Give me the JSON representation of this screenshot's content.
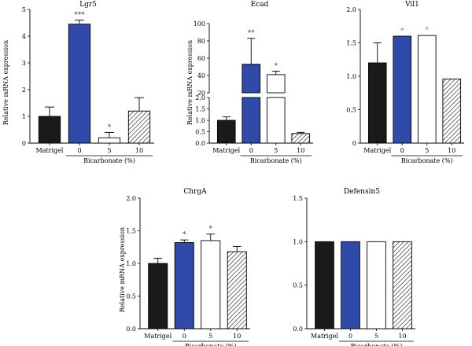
{
  "chart_data": [
    {
      "type": "bar",
      "title": "Lgr5",
      "ylabel": "Relative mRNA expression",
      "xlabel": "Bicarbonate (%)",
      "categories": [
        "Matrigel",
        "0",
        "5",
        "10"
      ],
      "values": [
        1.0,
        4.45,
        0.2,
        1.2
      ],
      "errors": [
        0.35,
        0.15,
        0.2,
        0.5
      ],
      "significance": [
        "",
        "***",
        "*",
        ""
      ],
      "ylim": [
        0,
        5
      ],
      "yticks": [
        "0",
        "1",
        "2",
        "3",
        "4",
        "5"
      ],
      "broken_axis": false
    },
    {
      "type": "bar",
      "title": "Ecad",
      "ylabel": "Relative mRNA expression",
      "xlabel": "Bicarbonate (%)",
      "categories": [
        "Matrigel",
        "0",
        "5",
        "10"
      ],
      "values": [
        1.0,
        53,
        41,
        0.42
      ],
      "errors": [
        0.15,
        30,
        4,
        0.05
      ],
      "significance": [
        "",
        "**",
        "*",
        ""
      ],
      "broken_axis": true,
      "lower_ylim": [
        0,
        2.0
      ],
      "lower_yticks": [
        "0.0",
        "0.5",
        "1.0",
        "1.5",
        "2.0"
      ],
      "upper_ylim": [
        20,
        100
      ],
      "upper_yticks": [
        "20",
        "40",
        "60",
        "80",
        "100"
      ]
    },
    {
      "type": "bar",
      "title": "Vil1",
      "ylabel": "",
      "xlabel": "Bicarbonate (%)",
      "categories": [
        "Matrigel",
        "0",
        "5",
        "10"
      ],
      "values": [
        1.2,
        1.6,
        1.61,
        0.96
      ],
      "errors": [
        0.3,
        0.0,
        0.0,
        0.0
      ],
      "significance": [
        "",
        "*",
        "*",
        ""
      ],
      "ylim": [
        0,
        2.0
      ],
      "yticks": [
        "0",
        "0.5",
        "1.0",
        "1.5",
        "2.0"
      ],
      "broken_axis": false
    },
    {
      "type": "bar",
      "title": "ChrgA",
      "ylabel": "Relative mRNA expression",
      "xlabel": "Bicarbonate (%)",
      "categories": [
        "Matrigel",
        "0",
        "5",
        "10"
      ],
      "values": [
        1.0,
        1.32,
        1.35,
        1.18
      ],
      "errors": [
        0.08,
        0.04,
        0.1,
        0.08
      ],
      "significance": [
        "",
        "*",
        "*",
        ""
      ],
      "ylim": [
        0,
        2.0
      ],
      "yticks": [
        "0.0",
        "0.5",
        "1.0",
        "1.5",
        "2.0"
      ],
      "broken_axis": false
    },
    {
      "type": "bar",
      "title": "Defensin5",
      "ylabel": "",
      "xlabel": "Bicarbonate (%)",
      "categories": [
        "Matrigel",
        "0",
        "5",
        "10"
      ],
      "values": [
        1.0,
        1.0,
        1.0,
        1.0
      ],
      "errors": [
        0.0,
        0.0,
        0.0,
        0.0
      ],
      "significance": [
        "",
        "",
        "",
        ""
      ],
      "ylim": [
        0,
        1.5
      ],
      "yticks": [
        "0.0",
        "0.5",
        "1.0",
        "1.5"
      ],
      "broken_axis": false
    }
  ],
  "colors": {
    "matrigel": "#1a1a1a",
    "bicarb0": "#2f4aa8",
    "bicarb5": "#ffffff",
    "bicarb10_hatch": "#333333",
    "significance_vil1": "#8a8a2a"
  }
}
